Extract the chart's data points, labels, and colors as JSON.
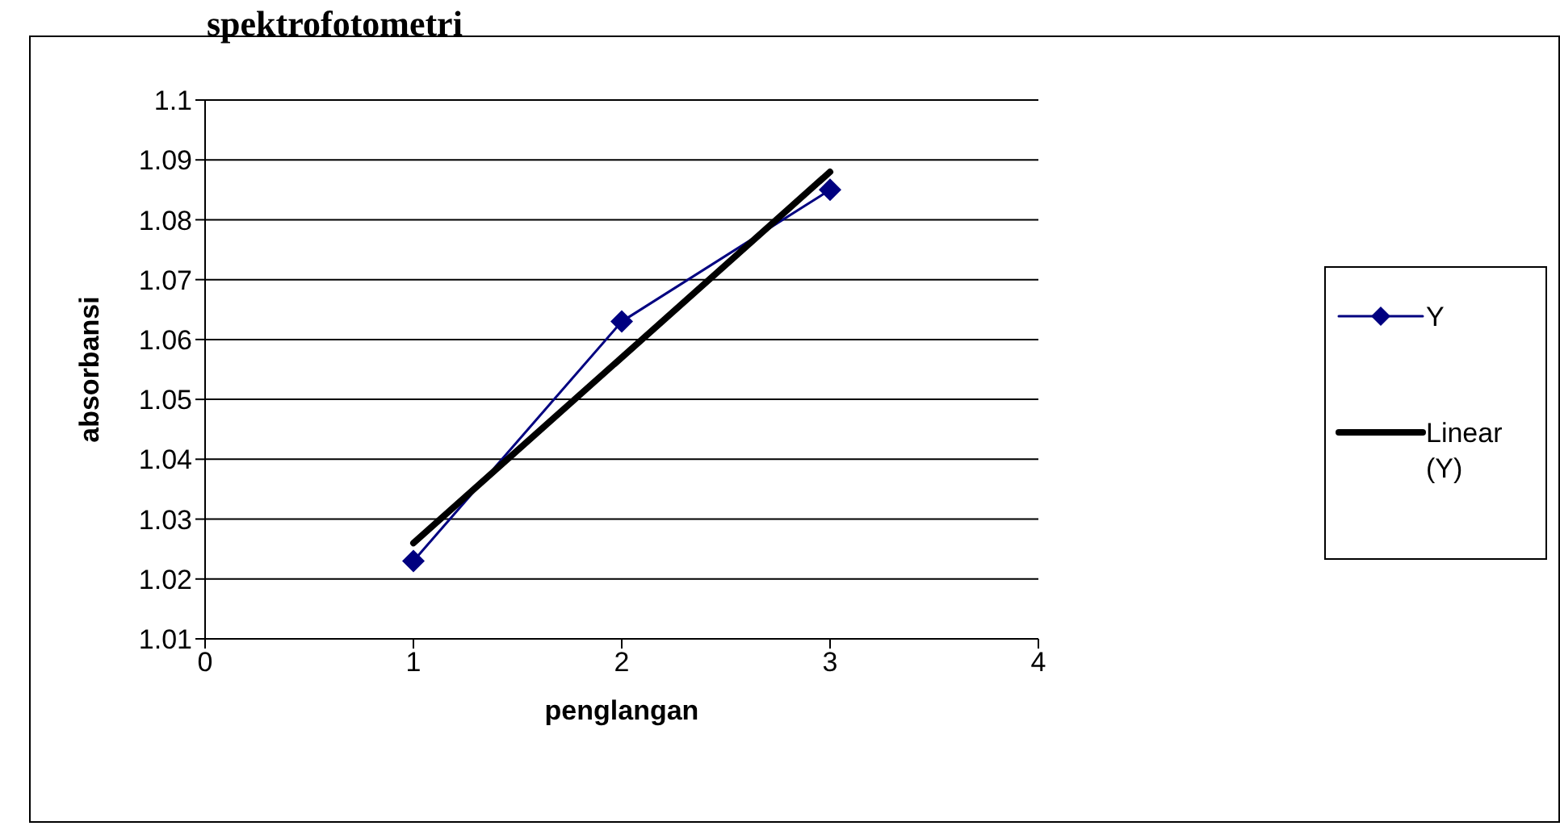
{
  "chart_data": {
    "type": "line",
    "title": "spektrofotometri",
    "xlabel": "penglangan",
    "ylabel": "absorbansi",
    "x": [
      1,
      2,
      3
    ],
    "series": [
      {
        "name": "Y",
        "color": "#000080",
        "values": [
          1.023,
          1.063,
          1.085
        ],
        "marker": "diamond"
      },
      {
        "name": "Linear (Y)",
        "color": "#000000",
        "values": [
          1.026,
          1.088
        ],
        "x": [
          1,
          3
        ],
        "marker": "none"
      }
    ],
    "xlim": [
      0,
      4
    ],
    "xticks": [
      0,
      1,
      2,
      3,
      4
    ],
    "ylim": [
      1.01,
      1.1
    ],
    "yticks": [
      1.01,
      1.02,
      1.03,
      1.04,
      1.05,
      1.06,
      1.07,
      1.08,
      1.09,
      1.1
    ],
    "grid": "y",
    "legend": "right"
  }
}
